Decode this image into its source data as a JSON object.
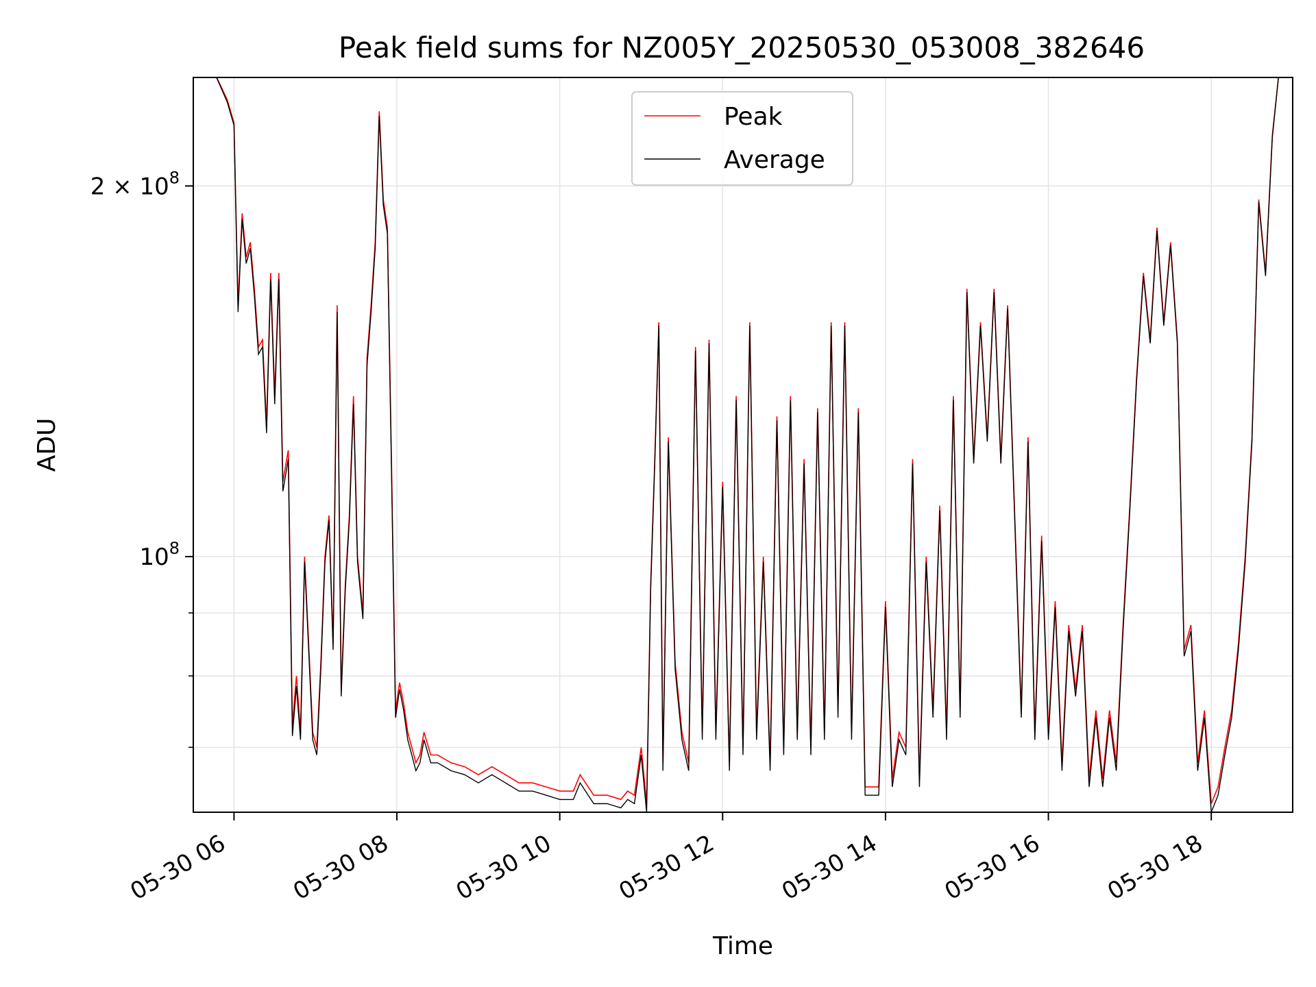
{
  "chart_data": {
    "type": "line",
    "title": "Peak field sums for NZ005Y_20250530_053008_382646",
    "xlabel": "Time",
    "ylabel": "ADU",
    "yscale": "log",
    "ylim": [
      62000000,
      245000000
    ],
    "xlim": [
      "2025-05-30 05:30",
      "2025-05-30 19:00"
    ],
    "grid": true,
    "legend_position": "upper center",
    "x_ticks": [
      "05-30 06",
      "05-30 08",
      "05-30 10",
      "05-30 12",
      "05-30 14",
      "05-30 16",
      "05-30 18"
    ],
    "y_ticks": [
      {
        "value": 100000000,
        "base": "10",
        "exp": "8",
        "coef": ""
      },
      {
        "value": 200000000,
        "base": "10",
        "exp": "8",
        "coef": "2 × "
      }
    ],
    "y_minor_ticks": [
      60000000,
      70000000,
      80000000,
      90000000
    ],
    "colors": {
      "peak": "#ff0000",
      "average": "#000000",
      "grid": "#e5e5e5"
    },
    "series": [
      {
        "name": "Peak",
        "color": "#ff0000",
        "x": [
          "2025-05-30 05:30",
          "2025-05-30 05:45",
          "2025-05-30 05:55",
          "2025-05-30 06:00",
          "2025-05-30 06:03",
          "2025-05-30 06:06",
          "2025-05-30 06:09",
          "2025-05-30 06:12",
          "2025-05-30 06:15",
          "2025-05-30 06:18",
          "2025-05-30 06:21",
          "2025-05-30 06:24",
          "2025-05-30 06:27",
          "2025-05-30 06:30",
          "2025-05-30 06:33",
          "2025-05-30 06:36",
          "2025-05-30 06:40",
          "2025-05-30 06:43",
          "2025-05-30 06:46",
          "2025-05-30 06:49",
          "2025-05-30 06:52",
          "2025-05-30 06:55",
          "2025-05-30 06:58",
          "2025-05-30 07:01",
          "2025-05-30 07:04",
          "2025-05-30 07:07",
          "2025-05-30 07:10",
          "2025-05-30 07:13",
          "2025-05-30 07:16",
          "2025-05-30 07:19",
          "2025-05-30 07:22",
          "2025-05-30 07:25",
          "2025-05-30 07:28",
          "2025-05-30 07:31",
          "2025-05-30 07:35",
          "2025-05-30 07:38",
          "2025-05-30 07:41",
          "2025-05-30 07:44",
          "2025-05-30 07:47",
          "2025-05-30 07:50",
          "2025-05-30 07:53",
          "2025-05-30 07:56",
          "2025-05-30 07:59",
          "2025-05-30 08:02",
          "2025-05-30 08:05",
          "2025-05-30 08:08",
          "2025-05-30 08:11",
          "2025-05-30 08:14",
          "2025-05-30 08:17",
          "2025-05-30 08:20",
          "2025-05-30 08:25",
          "2025-05-30 08:30",
          "2025-05-30 08:40",
          "2025-05-30 08:50",
          "2025-05-30 09:00",
          "2025-05-30 09:10",
          "2025-05-30 09:20",
          "2025-05-30 09:30",
          "2025-05-30 09:40",
          "2025-05-30 09:50",
          "2025-05-30 10:00",
          "2025-05-30 10:10",
          "2025-05-30 10:15",
          "2025-05-30 10:25",
          "2025-05-30 10:35",
          "2025-05-30 10:45",
          "2025-05-30 10:50",
          "2025-05-30 10:55",
          "2025-05-30 11:00",
          "2025-05-30 11:04",
          "2025-05-30 11:07",
          "2025-05-30 11:10",
          "2025-05-30 11:13",
          "2025-05-30 11:16",
          "2025-05-30 11:20",
          "2025-05-30 11:25",
          "2025-05-30 11:30",
          "2025-05-30 11:35",
          "2025-05-30 11:40",
          "2025-05-30 11:45",
          "2025-05-30 11:50",
          "2025-05-30 11:55",
          "2025-05-30 12:00",
          "2025-05-30 12:05",
          "2025-05-30 12:10",
          "2025-05-30 12:15",
          "2025-05-30 12:20",
          "2025-05-30 12:25",
          "2025-05-30 12:30",
          "2025-05-30 12:35",
          "2025-05-30 12:40",
          "2025-05-30 12:45",
          "2025-05-30 12:50",
          "2025-05-30 12:55",
          "2025-05-30 13:00",
          "2025-05-30 13:05",
          "2025-05-30 13:10",
          "2025-05-30 13:15",
          "2025-05-30 13:20",
          "2025-05-30 13:25",
          "2025-05-30 13:30",
          "2025-05-30 13:35",
          "2025-05-30 13:40",
          "2025-05-30 13:45",
          "2025-05-30 13:50",
          "2025-05-30 13:55",
          "2025-05-30 14:00",
          "2025-05-30 14:05",
          "2025-05-30 14:10",
          "2025-05-30 14:15",
          "2025-05-30 14:20",
          "2025-05-30 14:25",
          "2025-05-30 14:30",
          "2025-05-30 14:35",
          "2025-05-30 14:40",
          "2025-05-30 14:45",
          "2025-05-30 14:50",
          "2025-05-30 14:55",
          "2025-05-30 15:00",
          "2025-05-30 15:05",
          "2025-05-30 15:10",
          "2025-05-30 15:15",
          "2025-05-30 15:20",
          "2025-05-30 15:25",
          "2025-05-30 15:30",
          "2025-05-30 15:35",
          "2025-05-30 15:40",
          "2025-05-30 15:45",
          "2025-05-30 15:50",
          "2025-05-30 15:55",
          "2025-05-30 16:00",
          "2025-05-30 16:05",
          "2025-05-30 16:10",
          "2025-05-30 16:15",
          "2025-05-30 16:20",
          "2025-05-30 16:25",
          "2025-05-30 16:30",
          "2025-05-30 16:35",
          "2025-05-30 16:40",
          "2025-05-30 16:45",
          "2025-05-30 16:50",
          "2025-05-30 16:55",
          "2025-05-30 17:00",
          "2025-05-30 17:05",
          "2025-05-30 17:10",
          "2025-05-30 17:15",
          "2025-05-30 17:20",
          "2025-05-30 17:25",
          "2025-05-30 17:30",
          "2025-05-30 17:35",
          "2025-05-30 17:40",
          "2025-05-30 17:45",
          "2025-05-30 17:50",
          "2025-05-30 17:55",
          "2025-05-30 18:00",
          "2025-05-30 18:05",
          "2025-05-30 18:10",
          "2025-05-30 18:15",
          "2025-05-30 18:20",
          "2025-05-30 18:25",
          "2025-05-30 18:30",
          "2025-05-30 18:35",
          "2025-05-30 18:40",
          "2025-05-30 18:45",
          "2025-05-30 18:50",
          "2025-05-30 19:00"
        ],
        "y": [
          248000000,
          248000000,
          235000000,
          225000000,
          160000000,
          190000000,
          175000000,
          180000000,
          165000000,
          148000000,
          150000000,
          128000000,
          170000000,
          135000000,
          170000000,
          115000000,
          122000000,
          73000000,
          80000000,
          72000000,
          100000000,
          85000000,
          72000000,
          70000000,
          82000000,
          100000000,
          108000000,
          85000000,
          160000000,
          78000000,
          95000000,
          108000000,
          135000000,
          100000000,
          90000000,
          145000000,
          160000000,
          180000000,
          230000000,
          195000000,
          185000000,
          120000000,
          75000000,
          79000000,
          76000000,
          72000000,
          70000000,
          68000000,
          69000000,
          72000000,
          69000000,
          69000000,
          68000000,
          67500000,
          66500000,
          67500000,
          66500000,
          65500000,
          65500000,
          65000000,
          64500000,
          64500000,
          66500000,
          64000000,
          64000000,
          63500000,
          64500000,
          64000000,
          70000000,
          63000000,
          95000000,
          120000000,
          155000000,
          68000000,
          125000000,
          82000000,
          72000000,
          68000000,
          148000000,
          72000000,
          150000000,
          72000000,
          115000000,
          68000000,
          135000000,
          70000000,
          155000000,
          72000000,
          100000000,
          68000000,
          130000000,
          70000000,
          135000000,
          72000000,
          120000000,
          70000000,
          132000000,
          72000000,
          155000000,
          75000000,
          155000000,
          72000000,
          132000000,
          65000000,
          65000000,
          65000000,
          92000000,
          66000000,
          72000000,
          70000000,
          120000000,
          66000000,
          100000000,
          75000000,
          110000000,
          72000000,
          135000000,
          75000000,
          165000000,
          120000000,
          155000000,
          125000000,
          165000000,
          120000000,
          160000000,
          110000000,
          75000000,
          125000000,
          72000000,
          104000000,
          72000000,
          92000000,
          68000000,
          88000000,
          78000000,
          88000000,
          66000000,
          75000000,
          66000000,
          75000000,
          68000000,
          88000000,
          110000000,
          140000000,
          170000000,
          150000000,
          185000000,
          155000000,
          180000000,
          150000000,
          84000000,
          88000000,
          68000000,
          75000000,
          63000000,
          65000000,
          70000000,
          75000000,
          85000000,
          100000000,
          125000000,
          195000000,
          170000000,
          220000000,
          248000000,
          248000000
        ]
      },
      {
        "name": "Average",
        "color": "#000000",
        "x": [
          "2025-05-30 05:30",
          "2025-05-30 05:45",
          "2025-05-30 05:55",
          "2025-05-30 06:00",
          "2025-05-30 06:03",
          "2025-05-30 06:06",
          "2025-05-30 06:09",
          "2025-05-30 06:12",
          "2025-05-30 06:15",
          "2025-05-30 06:18",
          "2025-05-30 06:21",
          "2025-05-30 06:24",
          "2025-05-30 06:27",
          "2025-05-30 06:30",
          "2025-05-30 06:33",
          "2025-05-30 06:36",
          "2025-05-30 06:40",
          "2025-05-30 06:43",
          "2025-05-30 06:46",
          "2025-05-30 06:49",
          "2025-05-30 06:52",
          "2025-05-30 06:55",
          "2025-05-30 06:58",
          "2025-05-30 07:01",
          "2025-05-30 07:04",
          "2025-05-30 07:07",
          "2025-05-30 07:10",
          "2025-05-30 07:13",
          "2025-05-30 07:16",
          "2025-05-30 07:19",
          "2025-05-30 07:22",
          "2025-05-30 07:25",
          "2025-05-30 07:28",
          "2025-05-30 07:31",
          "2025-05-30 07:35",
          "2025-05-30 07:38",
          "2025-05-30 07:41",
          "2025-05-30 07:44",
          "2025-05-30 07:47",
          "2025-05-30 07:50",
          "2025-05-30 07:53",
          "2025-05-30 07:56",
          "2025-05-30 07:59",
          "2025-05-30 08:02",
          "2025-05-30 08:05",
          "2025-05-30 08:08",
          "2025-05-30 08:11",
          "2025-05-30 08:14",
          "2025-05-30 08:17",
          "2025-05-30 08:20",
          "2025-05-30 08:25",
          "2025-05-30 08:30",
          "2025-05-30 08:40",
          "2025-05-30 08:50",
          "2025-05-30 09:00",
          "2025-05-30 09:10",
          "2025-05-30 09:20",
          "2025-05-30 09:30",
          "2025-05-30 09:40",
          "2025-05-30 09:50",
          "2025-05-30 10:00",
          "2025-05-30 10:10",
          "2025-05-30 10:15",
          "2025-05-30 10:25",
          "2025-05-30 10:35",
          "2025-05-30 10:45",
          "2025-05-30 10:50",
          "2025-05-30 10:55",
          "2025-05-30 11:00",
          "2025-05-30 11:04",
          "2025-05-30 11:07",
          "2025-05-30 11:10",
          "2025-05-30 11:13",
          "2025-05-30 11:16",
          "2025-05-30 11:20",
          "2025-05-30 11:25",
          "2025-05-30 11:30",
          "2025-05-30 11:35",
          "2025-05-30 11:40",
          "2025-05-30 11:45",
          "2025-05-30 11:50",
          "2025-05-30 11:55",
          "2025-05-30 12:00",
          "2025-05-30 12:05",
          "2025-05-30 12:10",
          "2025-05-30 12:15",
          "2025-05-30 12:20",
          "2025-05-30 12:25",
          "2025-05-30 12:30",
          "2025-05-30 12:35",
          "2025-05-30 12:40",
          "2025-05-30 12:45",
          "2025-05-30 12:50",
          "2025-05-30 12:55",
          "2025-05-30 13:00",
          "2025-05-30 13:05",
          "2025-05-30 13:10",
          "2025-05-30 13:15",
          "2025-05-30 13:20",
          "2025-05-30 13:25",
          "2025-05-30 13:30",
          "2025-05-30 13:35",
          "2025-05-30 13:40",
          "2025-05-30 13:45",
          "2025-05-30 13:50",
          "2025-05-30 13:55",
          "2025-05-30 14:00",
          "2025-05-30 14:05",
          "2025-05-30 14:10",
          "2025-05-30 14:15",
          "2025-05-30 14:20",
          "2025-05-30 14:25",
          "2025-05-30 14:30",
          "2025-05-30 14:35",
          "2025-05-30 14:40",
          "2025-05-30 14:45",
          "2025-05-30 14:50",
          "2025-05-30 14:55",
          "2025-05-30 15:00",
          "2025-05-30 15:05",
          "2025-05-30 15:10",
          "2025-05-30 15:15",
          "2025-05-30 15:20",
          "2025-05-30 15:25",
          "2025-05-30 15:30",
          "2025-05-30 15:35",
          "2025-05-30 15:40",
          "2025-05-30 15:45",
          "2025-05-30 15:50",
          "2025-05-30 15:55",
          "2025-05-30 16:00",
          "2025-05-30 16:05",
          "2025-05-30 16:10",
          "2025-05-30 16:15",
          "2025-05-30 16:20",
          "2025-05-30 16:25",
          "2025-05-30 16:30",
          "2025-05-30 16:35",
          "2025-05-30 16:40",
          "2025-05-30 16:45",
          "2025-05-30 16:50",
          "2025-05-30 16:55",
          "2025-05-30 17:00",
          "2025-05-30 17:05",
          "2025-05-30 17:10",
          "2025-05-30 17:15",
          "2025-05-30 17:20",
          "2025-05-30 17:25",
          "2025-05-30 17:30",
          "2025-05-30 17:35",
          "2025-05-30 17:40",
          "2025-05-30 17:45",
          "2025-05-30 17:50",
          "2025-05-30 17:55",
          "2025-05-30 18:00",
          "2025-05-30 18:05",
          "2025-05-30 18:10",
          "2025-05-30 18:15",
          "2025-05-30 18:20",
          "2025-05-30 18:25",
          "2025-05-30 18:30",
          "2025-05-30 18:35",
          "2025-05-30 18:40",
          "2025-05-30 18:45",
          "2025-05-30 18:50",
          "2025-05-30 19:00"
        ],
        "y": [
          248000000,
          248000000,
          234000000,
          224000000,
          158000000,
          188000000,
          173000000,
          178000000,
          163000000,
          146000000,
          148000000,
          126000000,
          168000000,
          133000000,
          168000000,
          113000000,
          120000000,
          71500000,
          78500000,
          71000000,
          99000000,
          84000000,
          71000000,
          69000000,
          81000000,
          99000000,
          107000000,
          84000000,
          158000000,
          77000000,
          94000000,
          107000000,
          133000000,
          99000000,
          89000000,
          143000000,
          158000000,
          178000000,
          228000000,
          193000000,
          183000000,
          118000000,
          74000000,
          78000000,
          75000000,
          71000000,
          69000000,
          67000000,
          68000000,
          71000000,
          68000000,
          68000000,
          67000000,
          66500000,
          65500000,
          66500000,
          65500000,
          64500000,
          64500000,
          64000000,
          63500000,
          63500000,
          65500000,
          63000000,
          63000000,
          62500000,
          63500000,
          63000000,
          69000000,
          62000000,
          94000000,
          119000000,
          154000000,
          67000000,
          124000000,
          81000000,
          71000000,
          67000000,
          147000000,
          71000000,
          149000000,
          71000000,
          114000000,
          67000000,
          134000000,
          69000000,
          154000000,
          71000000,
          99000000,
          67000000,
          129000000,
          69000000,
          134000000,
          71000000,
          119000000,
          69000000,
          131000000,
          71000000,
          154000000,
          74000000,
          154000000,
          71000000,
          131000000,
          64000000,
          64000000,
          64000000,
          91000000,
          65000000,
          71000000,
          69000000,
          119000000,
          65000000,
          99000000,
          74000000,
          109000000,
          71000000,
          134000000,
          74000000,
          164000000,
          119000000,
          154000000,
          124000000,
          164000000,
          119000000,
          159000000,
          109000000,
          74000000,
          124000000,
          71000000,
          103000000,
          71000000,
          91000000,
          67000000,
          87000000,
          77000000,
          87000000,
          65000000,
          74000000,
          65000000,
          74000000,
          67000000,
          87000000,
          109000000,
          139000000,
          169000000,
          149000000,
          184000000,
          154000000,
          179000000,
          149000000,
          83000000,
          87000000,
          67000000,
          74000000,
          62000000,
          64000000,
          69000000,
          74000000,
          84000000,
          99000000,
          124000000,
          194000000,
          169000000,
          219000000,
          248000000,
          248000000
        ]
      }
    ]
  }
}
